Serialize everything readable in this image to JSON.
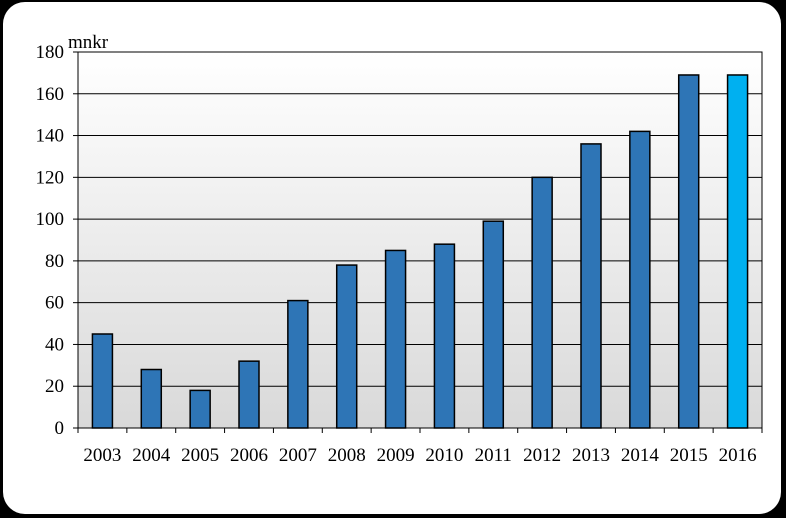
{
  "chart_data": {
    "type": "bar",
    "title": "",
    "unit_label": "mnkr",
    "xlabel": "",
    "ylabel": "",
    "categories": [
      "2003",
      "2004",
      "2005",
      "2006",
      "2007",
      "2008",
      "2009",
      "2010",
      "2011",
      "2012",
      "2013",
      "2014",
      "2015",
      "2016"
    ],
    "values": [
      45,
      28,
      18,
      32,
      61,
      78,
      85,
      88,
      99,
      120,
      136,
      142,
      169,
      169
    ],
    "ylim": [
      0,
      180
    ],
    "yticks": [
      0,
      20,
      40,
      60,
      80,
      100,
      120,
      140,
      160,
      180
    ],
    "grid": true,
    "legend": "none",
    "colors": {
      "bar": "#2e75b6",
      "highlight_bar": "#00b0f0",
      "bar_outline": "#000000",
      "plot_background_top": "#ffffff",
      "plot_background_bottom": "#d9d9d9"
    },
    "highlight_index": 13
  }
}
